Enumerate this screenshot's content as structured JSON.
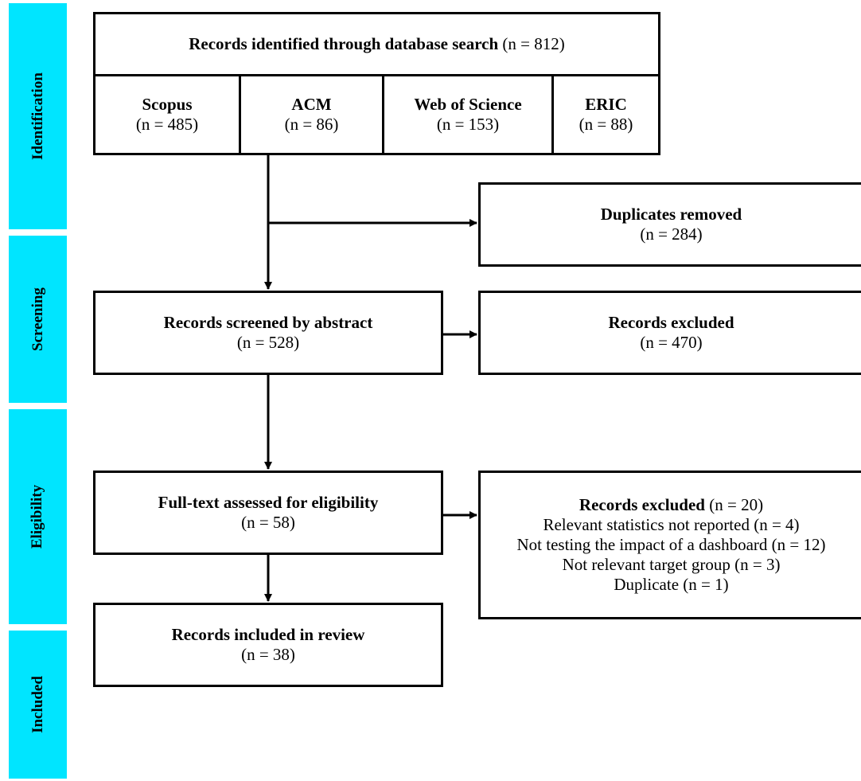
{
  "phases": {
    "identification": "Identification",
    "screening": "Screening",
    "eligibility": "Eligibility",
    "included": "Included"
  },
  "identified": {
    "title": "Records identified through database search",
    "count": "(n = 812)"
  },
  "sources": [
    {
      "name": "Scopus",
      "count": "(n = 485)"
    },
    {
      "name": "ACM",
      "count": "(n = 86)"
    },
    {
      "name": "Web of Science",
      "count": "(n = 153)"
    },
    {
      "name": "ERIC",
      "count": "(n = 88)"
    }
  ],
  "duplicates": {
    "title": "Duplicates removed",
    "count": "(n = 284)"
  },
  "screened": {
    "title": "Records screened by abstract",
    "count": "(n = 528)"
  },
  "excluded_abstract": {
    "title": "Records excluded",
    "count": "(n = 470)"
  },
  "fulltext": {
    "title": "Full-text assessed for eligibility",
    "count": "(n = 58)"
  },
  "excluded_fulltext": {
    "title": "Records excluded",
    "count": "(n = 20)",
    "reasons": [
      "Relevant statistics not reported (n = 4)",
      "Not testing the impact of a dashboard (n = 12)",
      "Not relevant target group (n = 3)",
      "Duplicate (n = 1)"
    ]
  },
  "included": {
    "title": "Records included in review",
    "count": "(n = 38)"
  },
  "colors": {
    "phase_bar": "#00e5ff",
    "border": "#000000"
  }
}
